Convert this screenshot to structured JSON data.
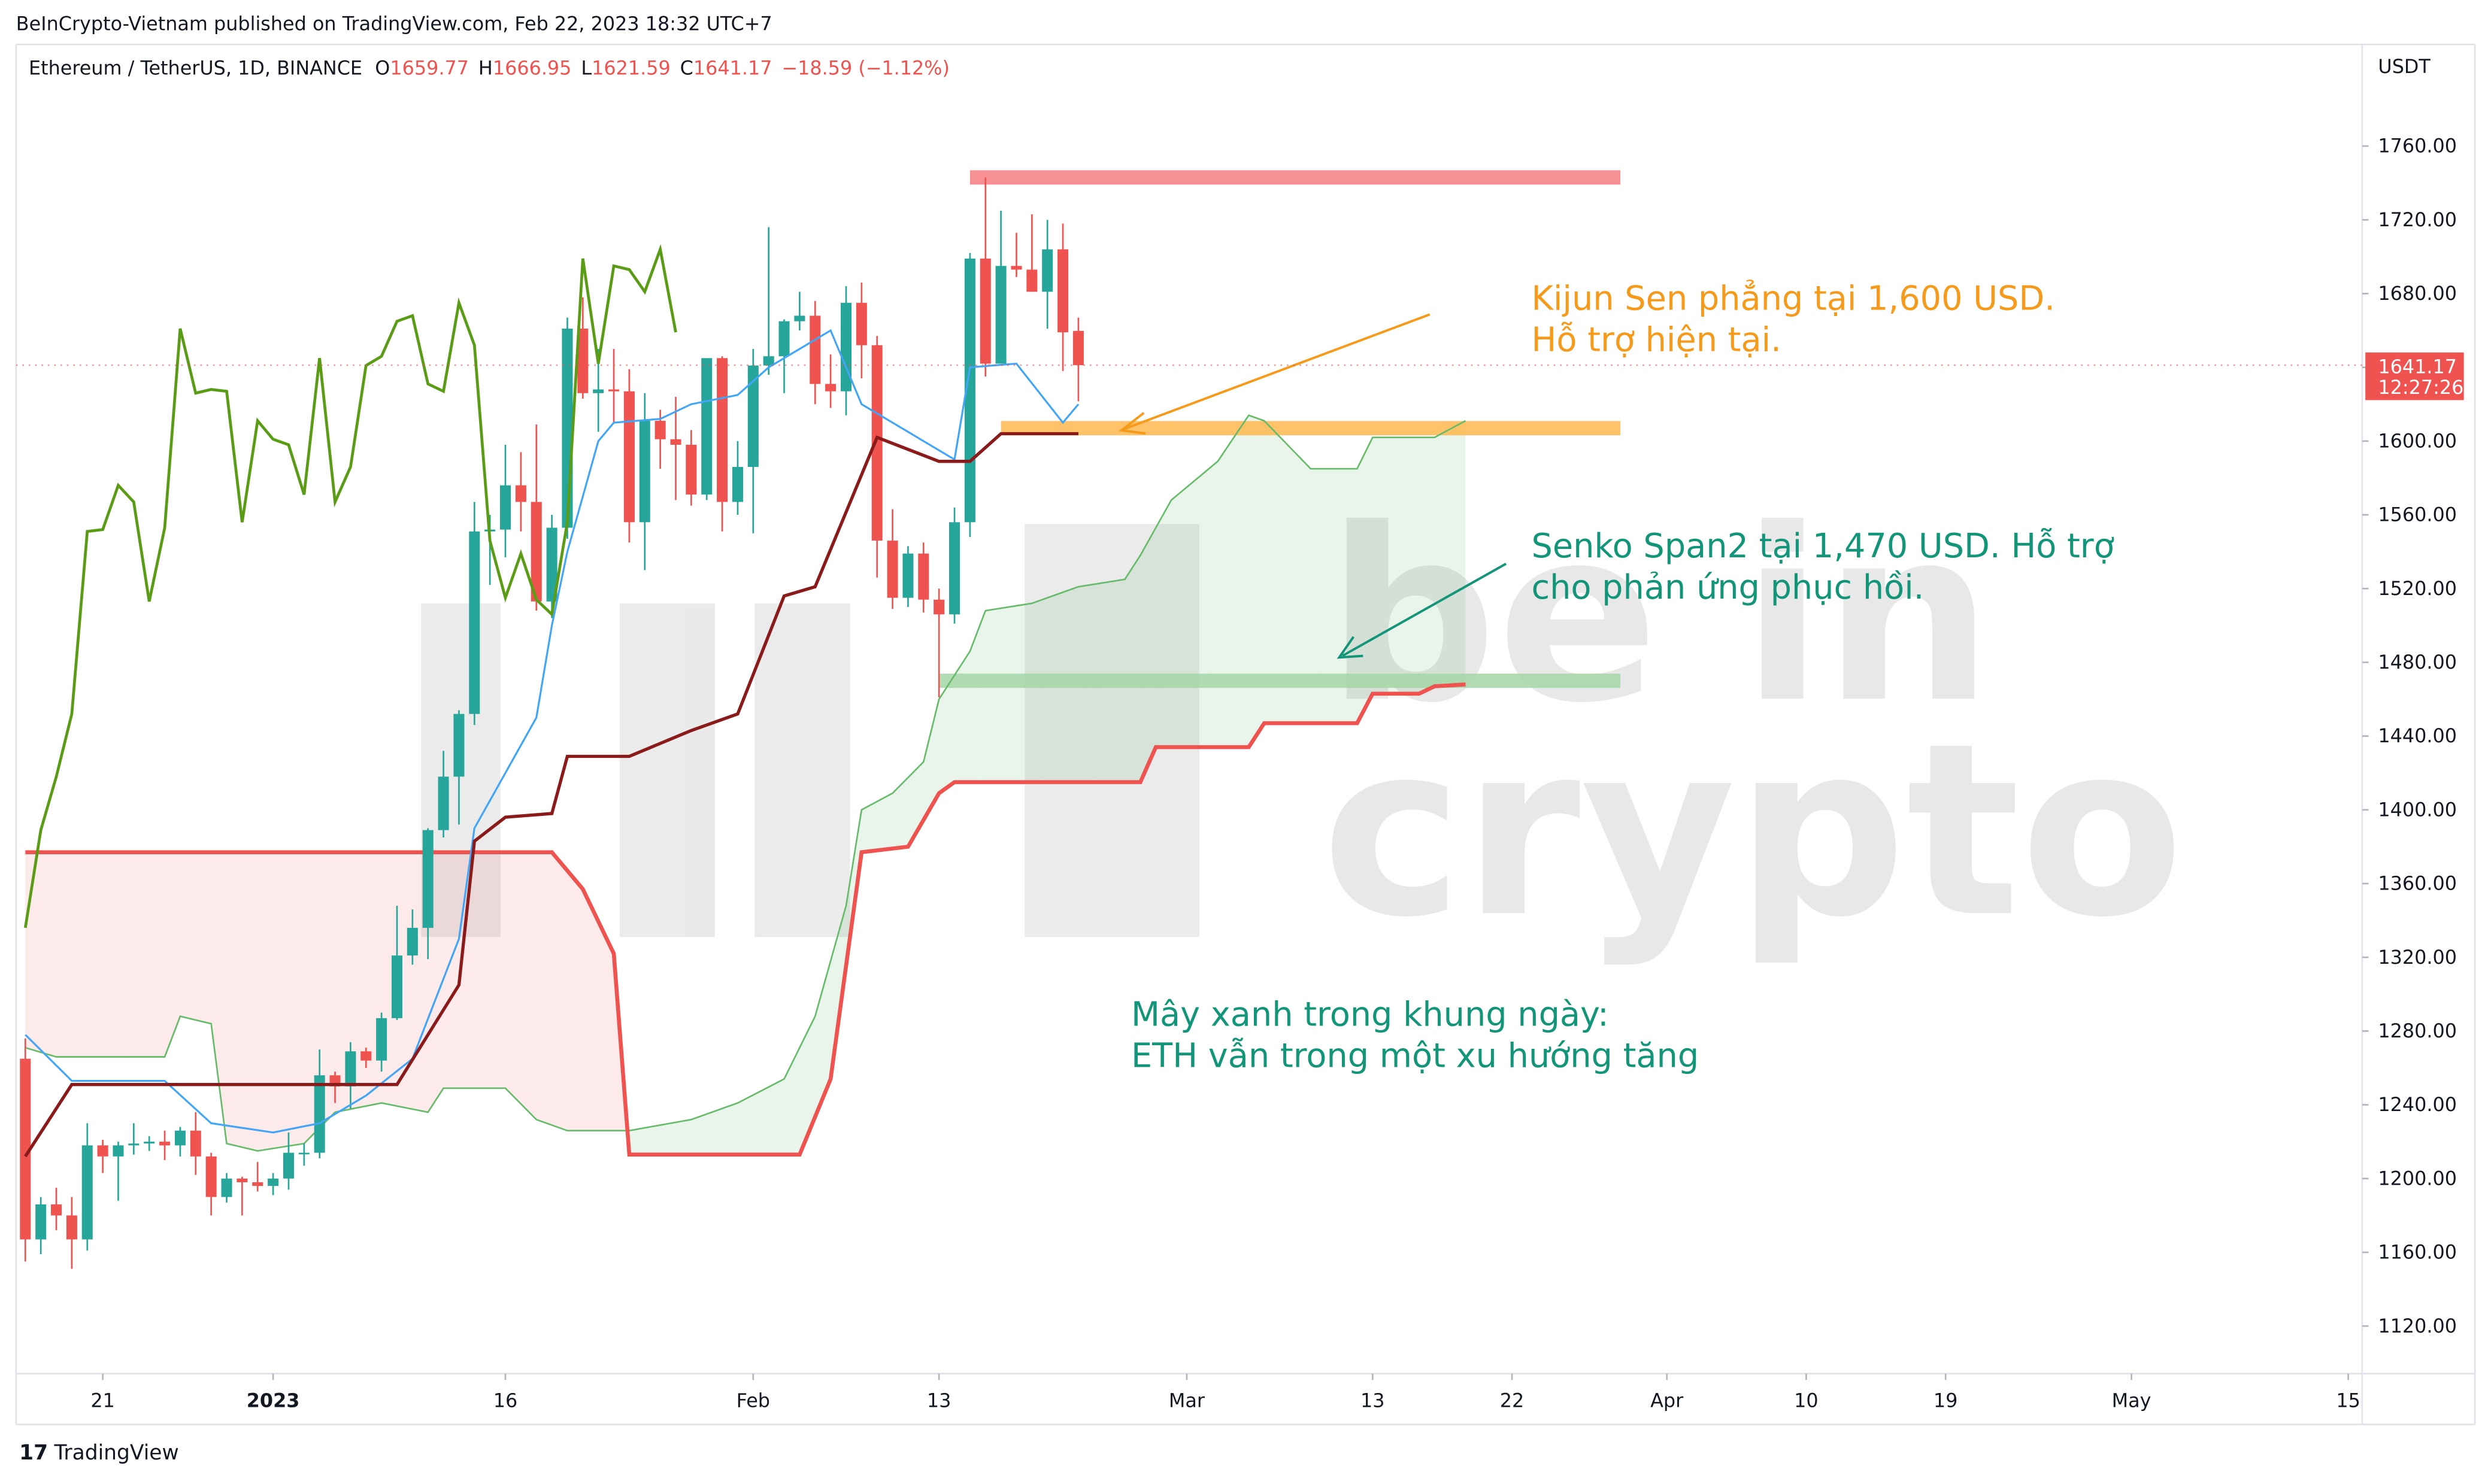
{
  "header": "BeInCrypto-Vietnam published on TradingView.com, Feb 22, 2023 18:32 UTC+7",
  "footer": "TradingView",
  "chart_data": {
    "type": "candlestick",
    "legend": {
      "symbol": "Ethereum / TetherUS, 1D, BINANCE",
      "o": "O",
      "h": "H",
      "l": "L",
      "c": "C",
      "change": "−18.59 (−1.12%)"
    },
    "currency": "USDT",
    "countdown": "12:27:26",
    "watermark": [
      "be in",
      "crypto"
    ],
    "x": [
      -16,
      -15,
      -14,
      -13,
      -12,
      -11,
      -10,
      -9,
      -8,
      -7,
      -6,
      -5,
      -4,
      -3,
      -2,
      -1,
      0,
      1,
      2,
      3,
      4,
      5,
      6,
      7,
      8,
      9,
      10,
      11,
      12,
      13,
      14,
      15,
      16,
      17,
      18,
      19,
      20,
      21,
      22,
      23,
      24,
      25,
      26,
      27,
      28,
      29,
      30,
      31,
      32,
      33,
      34,
      35,
      36,
      37,
      38,
      39,
      40,
      41,
      42,
      43,
      44,
      45,
      46,
      47,
      48,
      49,
      50,
      51,
      52
    ],
    "open": [
      1265,
      1167,
      1186,
      1180,
      1167,
      1218,
      1212,
      1218,
      1219,
      1220,
      1218,
      1226,
      1212,
      1190,
      1200,
      1198,
      1196,
      1200,
      1214,
      1214,
      1256,
      1250,
      1269,
      1264,
      1287,
      1321,
      1336,
      1389,
      1418,
      1452,
      1551,
      1552,
      1576,
      1567,
      1513,
      1553,
      1661,
      1626,
      1628,
      1627,
      1556,
      1611,
      1601,
      1598,
      1571,
      1645,
      1567,
      1586,
      1641,
      1646,
      1665,
      1668,
      1631,
      1627,
      1675,
      1652,
      1546,
      1515,
      1539,
      1514,
      1506,
      1556,
      1699,
      1642,
      1695,
      1693,
      1681,
      1704,
      1659.77
    ],
    "high": [
      1276,
      1190,
      1195,
      1190,
      1230,
      1221,
      1220,
      1230,
      1223,
      1226,
      1228,
      1236,
      1214,
      1203,
      1201,
      1209,
      1203,
      1225,
      1219,
      1270,
      1258,
      1274,
      1271,
      1290,
      1348,
      1346,
      1390,
      1432,
      1454,
      1567,
      1560,
      1598,
      1594,
      1609,
      1560,
      1667,
      1678,
      1650,
      1650,
      1639,
      1626,
      1617,
      1624,
      1606,
      1645,
      1646,
      1600,
      1650,
      1716,
      1666,
      1681,
      1676,
      1647,
      1684,
      1686,
      1657,
      1563,
      1543,
      1545,
      1520,
      1564,
      1702,
      1743,
      1725,
      1713,
      1723,
      1720,
      1718,
      1666.95
    ],
    "low": [
      1155,
      1159,
      1172,
      1151,
      1161,
      1203,
      1188,
      1213,
      1215,
      1210,
      1212,
      1202,
      1180,
      1187,
      1180,
      1193,
      1191,
      1194,
      1207,
      1211,
      1241,
      1238,
      1260,
      1258,
      1286,
      1316,
      1319,
      1385,
      1392,
      1446,
      1522,
      1537,
      1551,
      1508,
      1504,
      1547,
      1623,
      1605,
      1610,
      1545,
      1530,
      1585,
      1568,
      1565,
      1568,
      1551,
      1560,
      1550,
      1636,
      1626,
      1660,
      1620,
      1618,
      1614,
      1634,
      1526,
      1509,
      1510,
      1507,
      1461,
      1501,
      1548,
      1635,
      1642,
      1689,
      1681,
      1661,
      1638,
      1621.59
    ],
    "close": [
      1167,
      1186,
      1180,
      1167,
      1218,
      1212,
      1218,
      1219,
      1220,
      1218,
      1226,
      1212,
      1190,
      1200,
      1198,
      1196,
      1200,
      1214,
      1214,
      1256,
      1250,
      1269,
      1264,
      1287,
      1321,
      1336,
      1389,
      1418,
      1452,
      1551,
      1552,
      1576,
      1567,
      1513,
      1553,
      1661,
      1626,
      1628,
      1627,
      1556,
      1611,
      1601,
      1598,
      1571,
      1645,
      1567,
      1586,
      1641,
      1646,
      1665,
      1668,
      1631,
      1627,
      1675,
      1652,
      1546,
      1515,
      1539,
      1514,
      1506,
      1556,
      1699,
      1642,
      1695,
      1693,
      1681,
      1704,
      1659,
      1641.17
    ],
    "up_color": "#26a69a",
    "down_color": "#ef5350",
    "lines": [
      {
        "color": "#5b9c17",
        "x": [
          -16,
          -15,
          -14,
          -13,
          -12,
          -11,
          -10,
          -9,
          -8,
          -7,
          -6,
          -5,
          -4,
          -3,
          -2,
          -1,
          0,
          1,
          2,
          3,
          4,
          5,
          6,
          7,
          8,
          9,
          10,
          11,
          12,
          13,
          14,
          15,
          16,
          17,
          18,
          19,
          20,
          21,
          22,
          23,
          24,
          25,
          26
        ],
        "values": [
          1336,
          1389,
          1418,
          1452,
          1551,
          1552,
          1576,
          1567,
          1513,
          1553,
          1661,
          1626,
          1628,
          1627,
          1556,
          1611,
          1601,
          1598,
          1571,
          1645,
          1567,
          1586,
          1641,
          1646,
          1665,
          1668,
          1631,
          1627,
          1675,
          1652,
          1546,
          1515,
          1539,
          1514,
          1506,
          1556,
          1699,
          1642,
          1695,
          1693,
          1681,
          1704,
          1659
        ]
      },
      {
        "color": "#42a5f5",
        "x": [
          -16,
          -13,
          -7,
          -4,
          0,
          3,
          6,
          9,
          12,
          13,
          15,
          17,
          18,
          19,
          21,
          22,
          25,
          27,
          30,
          32,
          34,
          36,
          38,
          40,
          42,
          44,
          45,
          48,
          51,
          52
        ],
        "values": [
          1278,
          1253,
          1253,
          1230,
          1225,
          1230,
          1245,
          1265,
          1330,
          1390,
          1420,
          1450,
          1500,
          1540,
          1600,
          1610,
          1612,
          1620,
          1625,
          1640,
          1650,
          1660,
          1620,
          1610,
          1600,
          1590,
          1640,
          1642,
          1610,
          1620
        ]
      },
      {
        "color": "#8b1a1a",
        "x": [
          -16,
          -13,
          8,
          12,
          13,
          15,
          18,
          19,
          23,
          27,
          30,
          33,
          35,
          39,
          43,
          45,
          47,
          52
        ],
        "values": [
          1212,
          1251,
          1251,
          1305,
          1383,
          1396,
          1398,
          1429,
          1429,
          1443,
          1452,
          1516,
          1521,
          1602,
          1589,
          1589,
          1604,
          1604
        ]
      }
    ],
    "span_a": {
      "color": "#66bb6a",
      "x": [
        -16,
        -14,
        -7,
        -6,
        -4,
        -3,
        -1,
        2,
        4,
        7,
        10,
        11,
        15,
        17,
        19,
        23,
        27,
        30,
        33,
        35,
        37,
        38,
        40,
        42,
        43,
        45,
        46,
        49,
        52,
        55,
        56,
        58,
        61,
        63,
        64,
        67,
        70,
        71,
        75,
        77
      ],
      "values": [
        1271,
        1266,
        1266,
        1288,
        1284,
        1219,
        1215,
        1219,
        1236,
        1241,
        1236,
        1249,
        1249,
        1232,
        1226,
        1226,
        1232,
        1241,
        1254,
        1288,
        1348,
        1400,
        1409,
        1426,
        1460,
        1486,
        1508,
        1512,
        1521,
        1525,
        1538,
        1568,
        1589,
        1614,
        1611,
        1585,
        1585,
        1602,
        1602,
        1611
      ]
    },
    "span_b": {
      "color": "#ef5350",
      "x": [
        -16,
        18,
        20,
        22,
        23,
        34,
        36,
        38,
        41,
        43,
        44,
        56,
        57,
        63,
        64,
        70,
        71,
        74,
        75,
        77
      ],
      "values": [
        1377,
        1377,
        1357,
        1322,
        1213,
        1213,
        1254,
        1377,
        1380,
        1409,
        1415,
        1415,
        1434,
        1434,
        1447,
        1447,
        1463,
        1463,
        1467,
        1468
      ]
    },
    "zones": [
      {
        "color": "#f47c82",
        "value": 1743,
        "x": [
          45,
          87
        ]
      },
      {
        "color": "#ffb74d",
        "value": 1607,
        "x": [
          47,
          87
        ]
      },
      {
        "color": "#a5d6a7",
        "value": 1470,
        "x": [
          43,
          87
        ]
      }
    ],
    "annotations": [
      {
        "color": "#f59a1b",
        "lines": [
          "Kijun Sen phẳng tại 1,600 USD.",
          "Hỗ trợ hiện tại."
        ]
      },
      {
        "color": "#13957a",
        "lines": [
          "Senko Span2 tại 1,470 USD. Hỗ trợ",
          "cho phản ứng phục hồi."
        ]
      },
      {
        "color": "#13957a",
        "lines": [
          "Mây xanh trong khung ngày:",
          "ETH vẫn trong một xu hướng tăng"
        ]
      }
    ],
    "xlim": [
      -16.6,
      134.9
    ],
    "xticks": [
      {
        "value": -11,
        "label": "21"
      },
      {
        "value": 0,
        "label": "2023"
      },
      {
        "value": 15,
        "label": "16"
      },
      {
        "value": 31,
        "label": "Feb"
      },
      {
        "value": 43,
        "label": "13"
      },
      {
        "value": 59,
        "label": "Mar"
      },
      {
        "value": 71,
        "label": "13"
      },
      {
        "value": 80,
        "label": "22"
      },
      {
        "value": 90,
        "label": "Apr"
      },
      {
        "value": 99,
        "label": "10"
      },
      {
        "value": 108,
        "label": "19"
      },
      {
        "value": 120,
        "label": "May"
      },
      {
        "value": 134,
        "label": "15"
      }
    ],
    "ylim": [
      1094.2,
      1813.4
    ],
    "yticks": [
      {
        "value": 1120,
        "label": "1120.00"
      },
      {
        "value": 1160,
        "label": "1160.00"
      },
      {
        "value": 1200,
        "label": "1200.00"
      },
      {
        "value": 1240,
        "label": "1240.00"
      },
      {
        "value": 1280,
        "label": "1280.00"
      },
      {
        "value": 1320,
        "label": "1320.00"
      },
      {
        "value": 1360,
        "label": "1360.00"
      },
      {
        "value": 1400,
        "label": "1400.00"
      },
      {
        "value": 1440,
        "label": "1440.00"
      },
      {
        "value": 1480,
        "label": "1480.00"
      },
      {
        "value": 1520,
        "label": "1520.00"
      },
      {
        "value": 1560,
        "label": "1560.00"
      },
      {
        "value": 1600,
        "label": "1600.00"
      },
      {
        "value": 1640,
        "label": "1640.00"
      },
      {
        "value": 1680,
        "label": "1680.00"
      },
      {
        "value": 1720,
        "label": "1720.00"
      },
      {
        "value": 1760,
        "label": "1760.00"
      }
    ]
  }
}
